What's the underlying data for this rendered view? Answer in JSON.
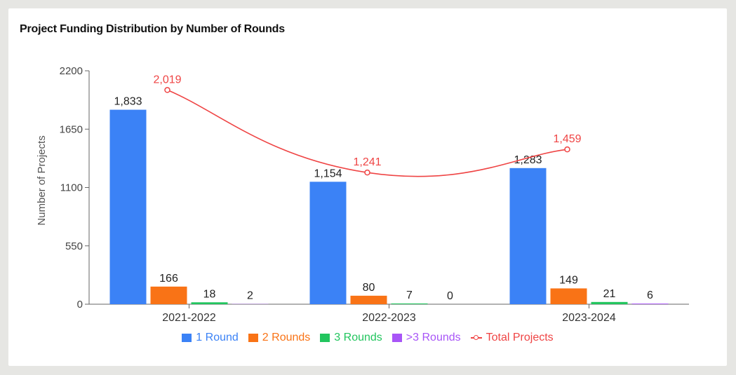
{
  "chart_data": {
    "type": "bar",
    "title": "Project Funding Distribution by Number of Rounds",
    "xlabel": "",
    "ylabel": "Number of Projects",
    "categories": [
      "2021-2022",
      "2022-2023",
      "2023-2024"
    ],
    "ylim": [
      0,
      2200
    ],
    "yticks": [
      0,
      550,
      1100,
      1650,
      2200
    ],
    "grid": false,
    "legend_position": "bottom",
    "series": [
      {
        "name": "1 Round",
        "color": "#3b82f6",
        "values": [
          1833,
          1154,
          1283
        ],
        "labels": [
          "1,833",
          "1,154",
          "1,283"
        ]
      },
      {
        "name": "2 Rounds",
        "color": "#f97316",
        "values": [
          166,
          80,
          149
        ],
        "labels": [
          "166",
          "80",
          "149"
        ]
      },
      {
        "name": "3 Rounds",
        "color": "#22c55e",
        "values": [
          18,
          7,
          21
        ],
        "labels": [
          "18",
          "7",
          "21"
        ]
      },
      {
        "name": ">3 Rounds",
        "color": "#a855f7",
        "values": [
          2,
          0,
          6
        ],
        "labels": [
          "2",
          "0",
          "6"
        ]
      }
    ],
    "line_series": {
      "name": "Total Projects",
      "color": "#ef4444",
      "values": [
        2019,
        1241,
        1459
      ],
      "labels": [
        "2,019",
        "1,241",
        "1,459"
      ]
    }
  }
}
